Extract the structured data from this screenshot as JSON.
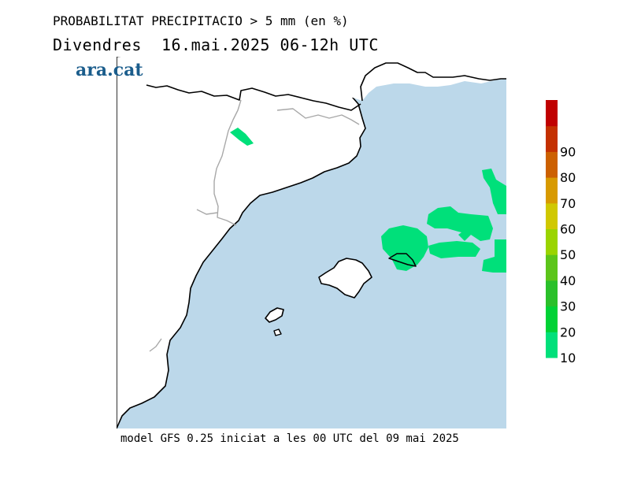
{
  "header": {
    "title": "PROBABILITAT PRECIPITACIO > 5 mm (en %)",
    "subtitle": "Divendres  16.mai.2025 06-12h UTC",
    "logo": "ara.cat"
  },
  "footer": {
    "caption": "model GFS 0.25 iniciat a les 00 UTC del 09 mai 2025"
  },
  "colors": {
    "sea": "#bcd8ea",
    "land": "#ffffff",
    "coast": "#000000",
    "border": "#a0a0a0",
    "precip_10": "#00e07a"
  },
  "legend": {
    "labels": [
      "10",
      "20",
      "30",
      "40",
      "50",
      "60",
      "70",
      "80",
      "90"
    ],
    "colors": [
      "#00e07a",
      "#00d235",
      "#2ac02a",
      "#5cc51a",
      "#9ad400",
      "#d0c800",
      "#d89a00",
      "#cc6000",
      "#c43000",
      "#c00000"
    ]
  }
}
